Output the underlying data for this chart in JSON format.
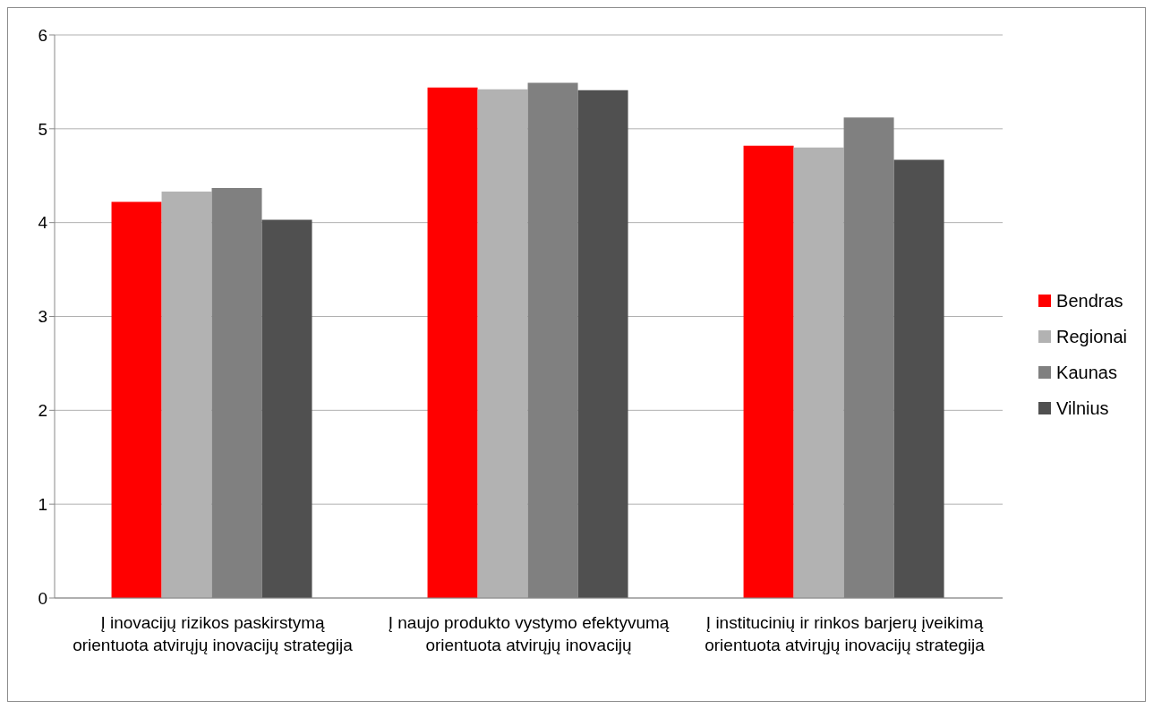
{
  "chart_data": {
    "type": "bar",
    "categories": [
      "Į inovacijų rizikos paskirstymą orientuota atvirųjų inovacijų strategija",
      "Į naujo produkto vystymo efektyvumą orientuota atvirųjų inovacijų",
      "Į institucinių ir rinkos barjerų įveikimą orientuota atvirųjų inovacijų strategija"
    ],
    "series": [
      {
        "name": "Bendras",
        "color": "#ff0000",
        "values": [
          4.22,
          5.44,
          4.82
        ]
      },
      {
        "name": "Regionai",
        "color": "#b2b2b2",
        "values": [
          4.33,
          5.42,
          4.8
        ]
      },
      {
        "name": "Kaunas",
        "color": "#808080",
        "values": [
          4.37,
          5.49,
          5.12
        ]
      },
      {
        "name": "Vilnius",
        "color": "#505050",
        "values": [
          4.03,
          5.41,
          4.67
        ]
      }
    ],
    "ylim": [
      0,
      6
    ],
    "yticks": [
      0,
      1,
      2,
      3,
      4,
      5,
      6
    ],
    "grid": "y",
    "legend": "right"
  }
}
